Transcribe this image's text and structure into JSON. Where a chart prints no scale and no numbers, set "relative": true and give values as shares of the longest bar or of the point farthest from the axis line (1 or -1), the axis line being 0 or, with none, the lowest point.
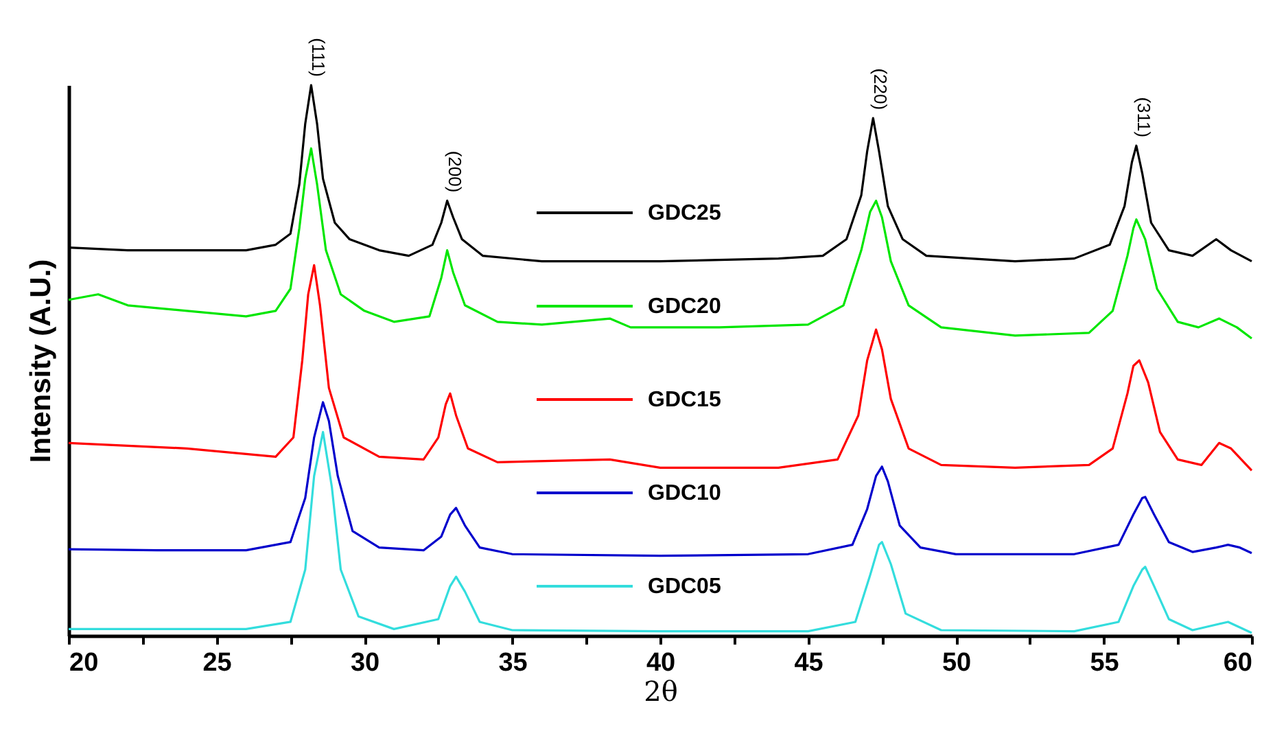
{
  "chart_data": {
    "type": "line",
    "relative": true,
    "xlabel": "2θ",
    "ylabel": "Intensity (A.U.)",
    "xlim": [
      20,
      60
    ],
    "xticks": [
      20,
      {
        "value": 22.5,
        "label": null
      },
      25,
      {
        "value": 27.5,
        "label": null
      },
      30,
      {
        "value": 32.5,
        "label": null
      },
      35,
      {
        "value": 37.5,
        "label": null
      },
      40,
      {
        "value": 42.5,
        "label": null
      },
      45,
      {
        "value": 47.5,
        "label": null
      },
      50,
      {
        "value": 52.5,
        "label": null
      },
      55,
      {
        "value": 57.5,
        "label": null
      },
      60
    ],
    "legend": "center",
    "annotations": [
      {
        "text": "(111)",
        "x": 28.2,
        "y": 1.0
      },
      {
        "text": "(200)",
        "x": 32.8,
        "y": 0.79
      },
      {
        "text": "(220)",
        "x": 47.2,
        "y": 0.94
      },
      {
        "text": "(311)",
        "x": 56.1,
        "y": 0.89
      }
    ],
    "series": [
      {
        "name": "GDC25",
        "color": "#000000",
        "x": [
          20,
          22,
          24,
          26,
          27,
          27.5,
          27.8,
          28.0,
          28.2,
          28.4,
          28.6,
          29.0,
          29.5,
          30.5,
          31.5,
          32.3,
          32.6,
          32.8,
          33.0,
          33.3,
          34,
          36,
          40,
          44,
          45.5,
          46.3,
          46.8,
          47.0,
          47.2,
          47.4,
          47.7,
          48.2,
          49,
          52,
          54,
          55.2,
          55.7,
          55.95,
          56.1,
          56.3,
          56.6,
          57.2,
          58,
          58.8,
          59.3,
          60
        ],
        "values": [
          0.705,
          0.7,
          0.7,
          0.7,
          0.71,
          0.73,
          0.82,
          0.93,
          1.0,
          0.93,
          0.83,
          0.75,
          0.72,
          0.7,
          0.69,
          0.71,
          0.75,
          0.79,
          0.76,
          0.72,
          0.69,
          0.68,
          0.68,
          0.685,
          0.69,
          0.72,
          0.8,
          0.88,
          0.94,
          0.88,
          0.78,
          0.72,
          0.69,
          0.68,
          0.685,
          0.71,
          0.78,
          0.86,
          0.89,
          0.84,
          0.75,
          0.7,
          0.69,
          0.72,
          0.7,
          0.68
        ]
      },
      {
        "name": "GDC20",
        "color": "#00e600",
        "x": [
          20,
          21,
          22,
          24,
          26,
          27,
          27.5,
          27.8,
          28.0,
          28.2,
          28.4,
          28.7,
          29.2,
          30,
          31,
          32.2,
          32.6,
          32.8,
          33.0,
          33.4,
          34.5,
          36,
          38.3,
          39,
          42,
          45,
          46.2,
          46.8,
          47.1,
          47.3,
          47.5,
          47.8,
          48.4,
          49.5,
          52,
          54.5,
          55.3,
          55.8,
          56.0,
          56.1,
          56.4,
          56.8,
          57.5,
          58.2,
          58.9,
          59.5,
          60
        ],
        "values": [
          0.61,
          0.62,
          0.6,
          0.59,
          0.58,
          0.59,
          0.63,
          0.74,
          0.83,
          0.885,
          0.82,
          0.7,
          0.62,
          0.59,
          0.57,
          0.58,
          0.65,
          0.7,
          0.66,
          0.6,
          0.57,
          0.565,
          0.576,
          0.56,
          0.56,
          0.565,
          0.6,
          0.7,
          0.77,
          0.79,
          0.76,
          0.68,
          0.6,
          0.56,
          0.545,
          0.55,
          0.59,
          0.69,
          0.74,
          0.756,
          0.72,
          0.63,
          0.57,
          0.56,
          0.576,
          0.56,
          0.54
        ]
      },
      {
        "name": "GDC15",
        "color": "#ff0000",
        "x": [
          20,
          22,
          24,
          26,
          27,
          27.6,
          27.9,
          28.1,
          28.3,
          28.5,
          28.8,
          29.3,
          30.5,
          32,
          32.5,
          32.75,
          32.9,
          33.1,
          33.5,
          34.5,
          38.3,
          40,
          44,
          46,
          46.7,
          47.0,
          47.3,
          47.5,
          47.8,
          48.4,
          49.5,
          52,
          54.5,
          55.3,
          55.8,
          56.0,
          56.2,
          56.5,
          56.9,
          57.5,
          58.3,
          58.9,
          59.3,
          60
        ],
        "values": [
          0.35,
          0.345,
          0.34,
          0.33,
          0.325,
          0.36,
          0.5,
          0.62,
          0.673,
          0.6,
          0.45,
          0.36,
          0.325,
          0.32,
          0.36,
          0.42,
          0.44,
          0.4,
          0.34,
          0.315,
          0.32,
          0.305,
          0.305,
          0.32,
          0.4,
          0.5,
          0.556,
          0.52,
          0.43,
          0.34,
          0.31,
          0.305,
          0.31,
          0.34,
          0.44,
          0.49,
          0.5,
          0.46,
          0.37,
          0.32,
          0.31,
          0.35,
          0.34,
          0.3
        ]
      },
      {
        "name": "GDC10",
        "color": "#0000cc",
        "x": [
          20,
          23,
          26,
          27.5,
          28.0,
          28.3,
          28.6,
          28.8,
          29.1,
          29.6,
          30.5,
          32,
          32.6,
          32.9,
          33.1,
          33.4,
          33.9,
          35,
          40,
          45,
          46.5,
          47.0,
          47.3,
          47.5,
          47.7,
          48.1,
          48.8,
          50,
          54,
          55.5,
          56.0,
          56.3,
          56.4,
          56.7,
          57.2,
          58,
          58.8,
          59.2,
          59.6,
          60
        ],
        "values": [
          0.157,
          0.155,
          0.155,
          0.17,
          0.25,
          0.36,
          0.424,
          0.39,
          0.29,
          0.19,
          0.16,
          0.155,
          0.18,
          0.22,
          0.232,
          0.2,
          0.16,
          0.148,
          0.145,
          0.148,
          0.165,
          0.23,
          0.29,
          0.307,
          0.28,
          0.2,
          0.16,
          0.148,
          0.148,
          0.165,
          0.22,
          0.25,
          0.252,
          0.22,
          0.17,
          0.152,
          0.16,
          0.165,
          0.16,
          0.15
        ]
      },
      {
        "name": "GDC05",
        "color": "#33dddd",
        "x": [
          20,
          23,
          26,
          27.5,
          28.0,
          28.3,
          28.6,
          28.9,
          29.2,
          29.8,
          31,
          32.5,
          32.9,
          33.1,
          33.4,
          33.9,
          35,
          40,
          45,
          46.6,
          47.1,
          47.4,
          47.5,
          47.8,
          48.3,
          49.5,
          54,
          55.5,
          56.0,
          56.3,
          56.4,
          56.7,
          57.2,
          58,
          59.2,
          59.6,
          60
        ],
        "values": [
          0.012,
          0.012,
          0.012,
          0.025,
          0.12,
          0.29,
          0.37,
          0.27,
          0.12,
          0.035,
          0.012,
          0.03,
          0.09,
          0.107,
          0.08,
          0.025,
          0.01,
          0.008,
          0.008,
          0.025,
          0.11,
          0.165,
          0.17,
          0.13,
          0.04,
          0.01,
          0.008,
          0.025,
          0.09,
          0.12,
          0.125,
          0.09,
          0.03,
          0.01,
          0.025,
          0.015,
          0.005
        ]
      }
    ]
  }
}
